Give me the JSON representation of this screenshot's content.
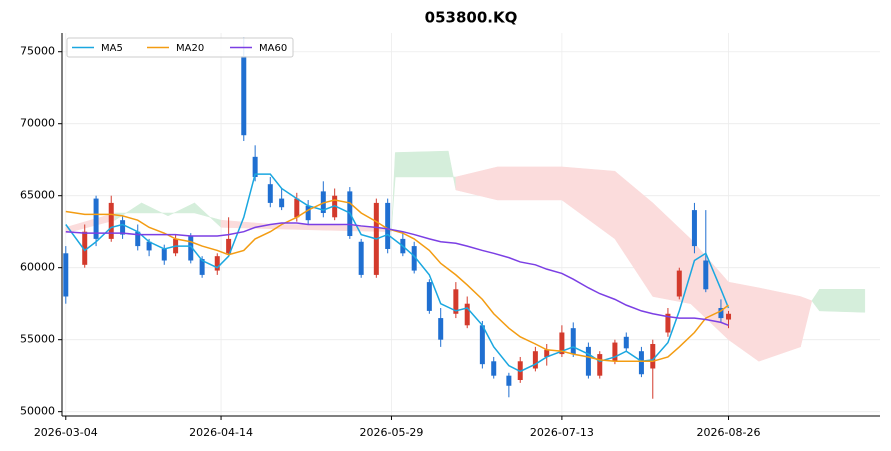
{
  "chart_data": {
    "type": "candlestick",
    "title": "053800.KQ",
    "x": [
      "2026-03-04",
      "2026-03-09",
      "2026-03-12",
      "2026-03-16",
      "2026-03-19",
      "2026-03-23",
      "2026-03-26",
      "2026-03-30",
      "2026-04-02",
      "2026-04-06",
      "2026-04-09",
      "2026-04-13",
      "2026-04-16",
      "2026-04-20",
      "2026-04-23",
      "2026-04-27",
      "2026-04-30",
      "2026-05-04",
      "2026-05-07",
      "2026-05-11",
      "2026-05-14",
      "2026-05-18",
      "2026-05-21",
      "2026-05-25",
      "2026-05-28",
      "2026-06-01",
      "2026-06-04",
      "2026-06-08",
      "2026-06-11",
      "2026-06-15",
      "2026-06-18",
      "2026-06-22",
      "2026-06-25",
      "2026-06-29",
      "2026-07-02",
      "2026-07-06",
      "2026-07-09",
      "2026-07-13",
      "2026-07-16",
      "2026-07-20",
      "2026-07-23",
      "2026-07-27",
      "2026-07-30",
      "2026-08-03",
      "2026-08-06",
      "2026-08-10",
      "2026-08-13",
      "2026-08-17",
      "2026-08-20",
      "2026-08-24",
      "2026-08-26"
    ],
    "open": [
      61000,
      60200,
      64800,
      62000,
      63300,
      62500,
      61800,
      61300,
      61000,
      62200,
      60600,
      59800,
      61000,
      74700,
      67700,
      65800,
      64800,
      63500,
      64300,
      65300,
      63500,
      65300,
      61800,
      59500,
      64500,
      62000,
      61500,
      59000,
      56500,
      56800,
      56000,
      56000,
      53500,
      52500,
      52200,
      53000,
      53800,
      54000,
      55800,
      54500,
      52500,
      53500,
      55200,
      54200,
      53000,
      55500,
      58000,
      64000,
      60500,
      57200,
      56400
    ],
    "high": [
      61500,
      63000,
      65000,
      65000,
      63600,
      63000,
      62000,
      61600,
      62300,
      62400,
      60800,
      61000,
      63500,
      76000,
      68500,
      66300,
      65500,
      65200,
      64700,
      66000,
      65500,
      65600,
      62000,
      64800,
      64800,
      62500,
      61800,
      59200,
      57200,
      59000,
      58000,
      56300,
      53800,
      52700,
      53800,
      54500,
      54700,
      56000,
      56200,
      54800,
      54200,
      55000,
      55500,
      54500,
      55000,
      57200,
      60000,
      64500,
      64000,
      57800,
      57000
    ],
    "low": [
      57500,
      60000,
      61500,
      61800,
      62000,
      61200,
      60800,
      60200,
      60800,
      60300,
      59300,
      59500,
      60800,
      68800,
      66000,
      64200,
      64000,
      63200,
      63000,
      63500,
      63300,
      62000,
      59300,
      59300,
      61000,
      60800,
      59600,
      56800,
      54500,
      56500,
      55800,
      53000,
      52300,
      51000,
      52000,
      52800,
      53200,
      53800,
      53800,
      52300,
      52300,
      53300,
      54200,
      52400,
      50900,
      55200,
      57800,
      61000,
      58300,
      56200,
      55800
    ],
    "close": [
      58000,
      62500,
      62000,
      64500,
      62300,
      61500,
      61200,
      60500,
      62000,
      60500,
      59500,
      60800,
      62000,
      69200,
      66300,
      64500,
      64200,
      64800,
      63300,
      63800,
      65000,
      62200,
      59500,
      64500,
      61300,
      61000,
      59800,
      57000,
      55000,
      58500,
      57500,
      53300,
      52500,
      51800,
      53500,
      54200,
      54300,
      55500,
      54000,
      52500,
      54000,
      54800,
      54400,
      52600,
      54700,
      56800,
      59800,
      61500,
      58500,
      56500,
      56800
    ],
    "up_color": "#d33a2c",
    "down_color": "#1f6fd1",
    "series": [
      {
        "name": "MA5",
        "color": "#1aa7e0",
        "values": [
          63000,
          61200,
          61800,
          62800,
          63000,
          62500,
          61800,
          61300,
          61500,
          61500,
          60500,
          60000,
          60800,
          63500,
          66500,
          66500,
          65500,
          64800,
          64300,
          64000,
          64300,
          63800,
          62300,
          62000,
          62300,
          61500,
          60800,
          59500,
          57500,
          57000,
          57200,
          56000,
          54500,
          53200,
          52800,
          53300,
          53800,
          54200,
          54500,
          54000,
          53500,
          53800,
          54200,
          53500,
          53600,
          54800,
          57000,
          60500,
          61000,
          58500,
          57200
        ]
      },
      {
        "name": "MA20",
        "color": "#f39c12",
        "values": [
          63900,
          63700,
          63700,
          63700,
          63600,
          63300,
          62800,
          62400,
          62000,
          61800,
          61500,
          61200,
          60900,
          61200,
          62000,
          62500,
          63000,
          63500,
          64000,
          64500,
          64700,
          64500,
          63800,
          63200,
          62700,
          62400,
          62000,
          61200,
          60300,
          59500,
          58800,
          57800,
          56800,
          55800,
          55200,
          54700,
          54300,
          54200,
          54000,
          53800,
          53600,
          53500,
          53500,
          53500,
          53500,
          53800,
          54500,
          55500,
          56500,
          57000,
          57400
        ]
      },
      {
        "name": "MA60",
        "color": "#7b3fe4",
        "values": [
          62500,
          62400,
          62400,
          62400,
          62400,
          62300,
          62300,
          62300,
          62300,
          62200,
          62200,
          62200,
          62300,
          62500,
          62800,
          63000,
          63100,
          63100,
          63000,
          63000,
          63000,
          63000,
          62900,
          62800,
          62700,
          62500,
          62300,
          62000,
          61800,
          61700,
          61500,
          61200,
          61000,
          60700,
          60400,
          60200,
          59900,
          59600,
          59200,
          58600,
          58200,
          57800,
          57400,
          57000,
          56800,
          56600,
          56500,
          56500,
          56400,
          56200,
          56000
        ]
      }
    ],
    "cloud": {
      "x": [
        "2026-03-04",
        "2026-03-17",
        "2026-03-24",
        "2026-03-31",
        "2026-04-07",
        "2026-04-14",
        "2026-04-28",
        "2026-05-12",
        "2026-05-29",
        "2026-05-30",
        "2026-06-13",
        "2026-06-15",
        "2026-06-26",
        "2026-07-13",
        "2026-07-27",
        "2026-08-06",
        "2026-08-16",
        "2026-08-26",
        "2026-09-03",
        "2026-09-14",
        "2026-09-17",
        "2026-09-19",
        "2026-10-01"
      ],
      "span_a": [
        62400,
        63300,
        64500,
        63600,
        64500,
        62800,
        62700,
        62600,
        62500,
        68000,
        68100,
        65400,
        64700,
        64700,
        62000,
        58000,
        57500,
        55000,
        53500,
        54500,
        57700,
        58500,
        58500
      ],
      "span_b": [
        62800,
        63800,
        63800,
        63800,
        63800,
        63300,
        63000,
        63000,
        62700,
        66300,
        66300,
        66300,
        67000,
        67000,
        66700,
        64500,
        62000,
        59000,
        58600,
        58000,
        57700,
        57000,
        56900
      ],
      "up_color": "#d5eedb",
      "down_color": "#fbdcdc"
    },
    "xlim": [
      "2026-03-03",
      "2026-10-05"
    ],
    "xticks": [
      "2026-03-04",
      "2026-04-14",
      "2026-05-29",
      "2026-07-13",
      "2026-08-26"
    ],
    "ylim": [
      49700,
      76300
    ],
    "yticks": [
      50000,
      55000,
      60000,
      65000,
      70000,
      75000
    ],
    "grid": true,
    "legend": "upper left"
  }
}
